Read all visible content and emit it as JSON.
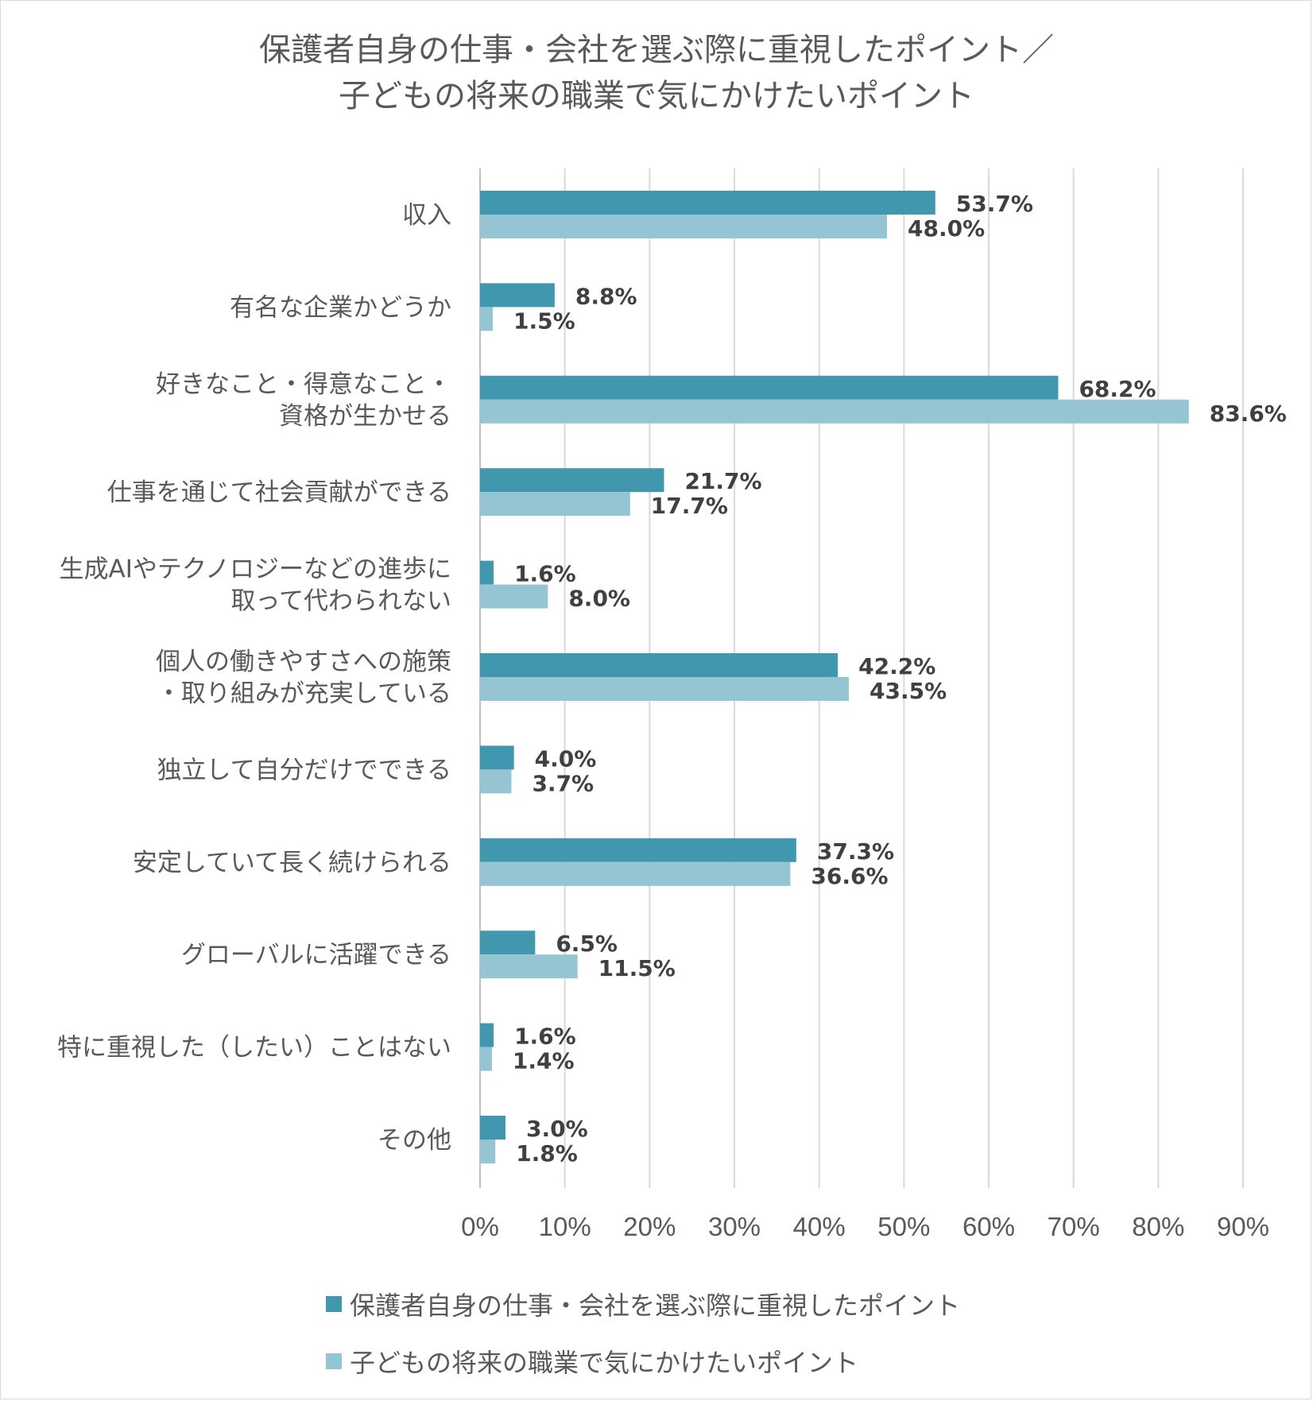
{
  "chart_data": {
    "type": "bar",
    "orientation": "horizontal",
    "title_lines": [
      "保護者自身の仕事・会社を選ぶ際に重視したポイント／",
      "子どもの将来の職業で気にかけたいポイント"
    ],
    "categories": [
      [
        "収入"
      ],
      [
        "有名な企業かどうか"
      ],
      [
        "好きなこと・得意なこと・",
        "資格が生かせる"
      ],
      [
        "仕事を通じて社会貢献ができる"
      ],
      [
        "生成AIやテクノロジーなどの進歩に",
        "取って代わられない"
      ],
      [
        "個人の働きやすさへの施策",
        "・取り組みが充実している"
      ],
      [
        "独立して自分だけでできる"
      ],
      [
        "安定していて長く続けられる"
      ],
      [
        "グローバルに活躍できる"
      ],
      [
        "特に重視した（したい）ことはない"
      ],
      [
        "その他"
      ]
    ],
    "series": [
      {
        "name": "保護者自身の仕事・会社を選ぶ際に重視したポイント",
        "color": "#4198ae",
        "values": [
          53.7,
          8.8,
          68.2,
          21.7,
          1.6,
          42.2,
          4.0,
          37.3,
          6.5,
          1.6,
          3.0
        ],
        "labels": [
          "53.7%",
          "8.8%",
          "68.2%",
          "21.7%",
          "1.6%",
          "42.2%",
          "4.0%",
          "37.3%",
          "6.5%",
          "1.6%",
          "3.0%"
        ]
      },
      {
        "name": "子どもの将来の職業で気にかけたいポイント",
        "color": "#95c5d3",
        "values": [
          48.0,
          1.5,
          83.6,
          17.7,
          8.0,
          43.5,
          3.7,
          36.6,
          11.5,
          1.4,
          1.8
        ],
        "labels": [
          "48.0%",
          "1.5%",
          "83.6%",
          "17.7%",
          "8.0%",
          "43.5%",
          "3.7%",
          "36.6%",
          "11.5%",
          "1.4%",
          "1.8%"
        ]
      }
    ],
    "x_ticks": [
      0,
      10,
      20,
      30,
      40,
      50,
      60,
      70,
      80,
      90
    ],
    "x_tick_labels": [
      "0%",
      "10%",
      "20%",
      "30%",
      "40%",
      "50%",
      "60%",
      "70%",
      "80%",
      "90%"
    ],
    "xlim": [
      0,
      90
    ],
    "grid": true,
    "legend_position": "bottom"
  },
  "legend": {
    "items": [
      {
        "label": "保護者自身の仕事・会社を選ぶ際に重視したポイント",
        "color": "#4198ae"
      },
      {
        "label": "子どもの将来の職業で気にかけたいポイント",
        "color": "#95c5d3"
      }
    ]
  }
}
